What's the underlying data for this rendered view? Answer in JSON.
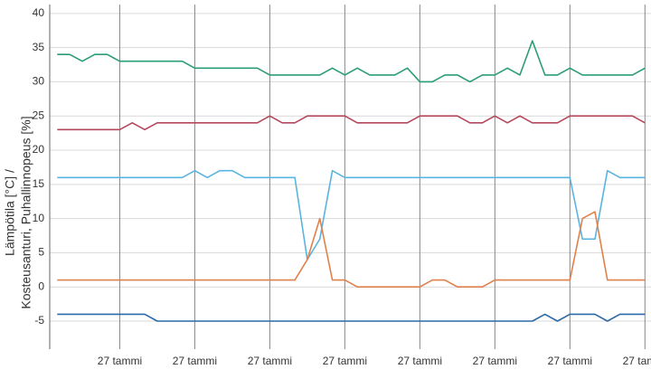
{
  "chart_data": {
    "type": "line",
    "y_label": [
      "Lämpötila [°C] /",
      "Kosteusanturi, Puhallinnopeus [%]"
    ],
    "categories": [
      null,
      null,
      null,
      null,
      null,
      "27 tammi",
      null,
      null,
      null,
      null,
      null,
      "27 tammi",
      null,
      null,
      null,
      null,
      null,
      "27 tammi",
      null,
      null,
      null,
      null,
      null,
      "27 tammi",
      null,
      null,
      null,
      null,
      null,
      "27 tammi",
      null,
      null,
      null,
      null,
      null,
      "27 tammi",
      null,
      null,
      null,
      null,
      null,
      "27 tammi",
      null,
      null,
      null,
      null,
      null,
      "27 tammi"
    ],
    "ylim": [
      -9.1,
      41.3
    ],
    "yticks": [
      -5,
      0,
      5,
      10,
      15,
      20,
      25,
      30,
      35,
      40
    ],
    "grid": true,
    "series": [
      {
        "color": "#2a9d78",
        "values": [
          34,
          34,
          33,
          34,
          34,
          33,
          33,
          33,
          33,
          33,
          33,
          32,
          32,
          32,
          32,
          32,
          32,
          31,
          31,
          31,
          31,
          31,
          32,
          31,
          32,
          31,
          31,
          31,
          32,
          30,
          30,
          31,
          31,
          30,
          31,
          31,
          32,
          31,
          36,
          31,
          31,
          32,
          31,
          31,
          31,
          31,
          31,
          32
        ]
      },
      {
        "color": "#b5475b",
        "values": [
          23,
          23,
          23,
          23,
          23,
          23,
          24,
          23,
          24,
          24,
          24,
          24,
          24,
          24,
          24,
          24,
          24,
          25,
          24,
          24,
          25,
          25,
          25,
          25,
          24,
          24,
          24,
          24,
          24,
          25,
          25,
          25,
          25,
          24,
          24,
          25,
          24,
          25,
          24,
          24,
          24,
          25,
          25,
          25,
          25,
          25,
          25,
          24
        ]
      },
      {
        "color": "#5ab4e0",
        "values": [
          16,
          16,
          16,
          16,
          16,
          16,
          16,
          16,
          16,
          16,
          16,
          17,
          16,
          17,
          17,
          16,
          16,
          16,
          16,
          16,
          4,
          7,
          17,
          16,
          16,
          16,
          16,
          16,
          16,
          16,
          16,
          16,
          16,
          16,
          16,
          16,
          16,
          16,
          16,
          16,
          16,
          16,
          7,
          7,
          17,
          16,
          16,
          16
        ]
      },
      {
        "color": "#e0804a",
        "values": [
          1,
          1,
          1,
          1,
          1,
          1,
          1,
          1,
          1,
          1,
          1,
          1,
          1,
          1,
          1,
          1,
          1,
          1,
          1,
          1,
          4,
          10,
          1,
          1,
          0,
          0,
          0,
          0,
          0,
          0,
          1,
          1,
          0,
          0,
          0,
          1,
          1,
          1,
          1,
          1,
          1,
          1,
          10,
          11,
          1,
          1,
          1,
          1
        ]
      },
      {
        "color": "#2a6aa8",
        "values": [
          -4,
          -4,
          -4,
          -4,
          -4,
          -4,
          -4,
          -4,
          -5,
          -5,
          -5,
          -5,
          -5,
          -5,
          -5,
          -5,
          -5,
          -5,
          -5,
          -5,
          -5,
          -5,
          -5,
          -5,
          -5,
          -5,
          -5,
          -5,
          -5,
          -5,
          -5,
          -5,
          -5,
          -5,
          -5,
          -5,
          -5,
          -5,
          -5,
          -4,
          -5,
          -4,
          -4,
          -4,
          -5,
          -4,
          -4,
          -4
        ]
      }
    ]
  }
}
